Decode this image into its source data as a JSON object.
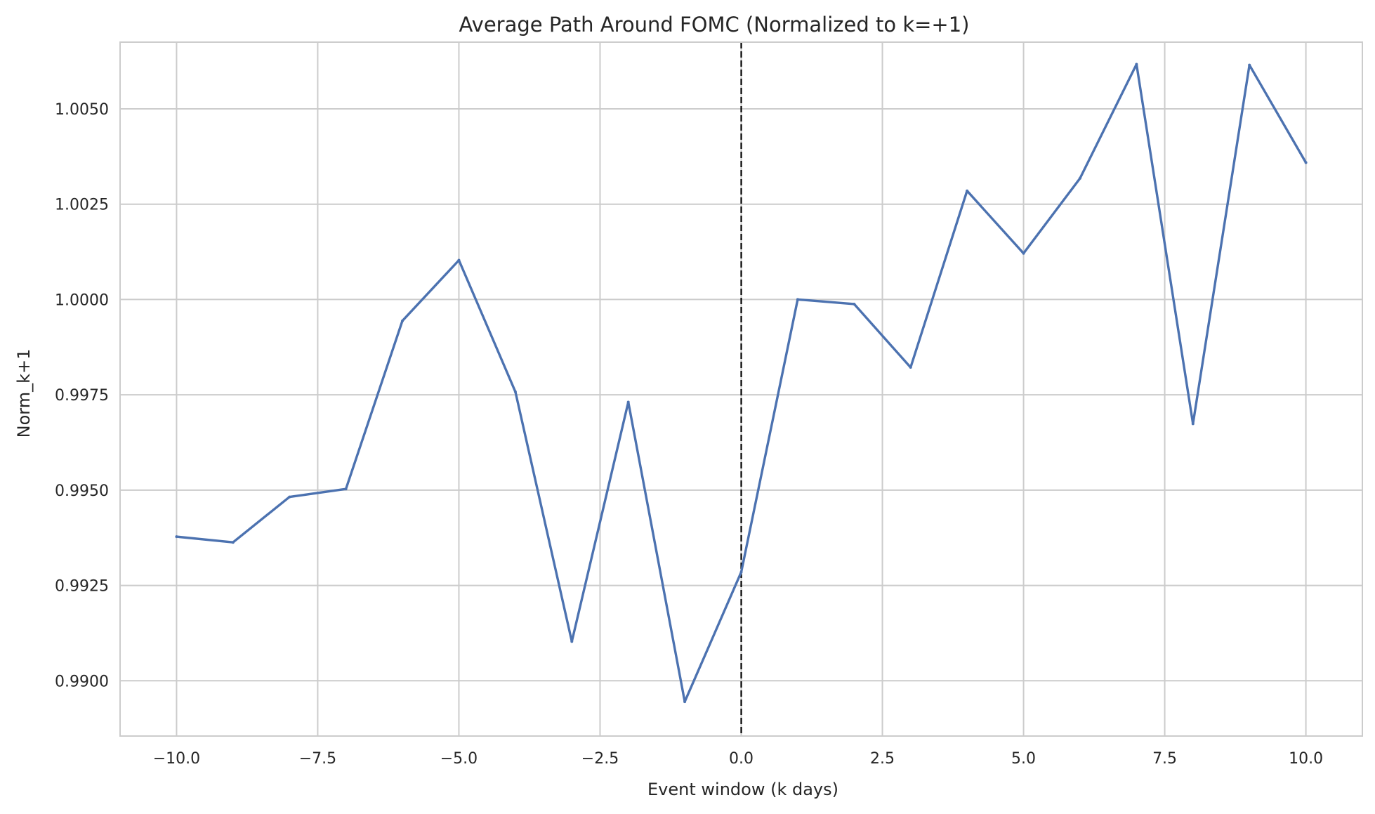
{
  "chart_data": {
    "type": "line",
    "title": "Average Path Around FOMC (Normalized to k=+1)",
    "xlabel": "Event window (k days)",
    "ylabel": "Norm_k+1",
    "xlim": [
      -11.0,
      11.0
    ],
    "ylim": [
      0.98855,
      1.00675
    ],
    "x_ticks": [
      -10.0,
      -7.5,
      -5.0,
      -2.5,
      0.0,
      2.5,
      5.0,
      7.5,
      10.0
    ],
    "x_tick_labels": [
      "−10.0",
      "−7.5",
      "−5.0",
      "−2.5",
      "0.0",
      "2.5",
      "5.0",
      "7.5",
      "10.0"
    ],
    "y_ticks": [
      0.99,
      0.9925,
      0.995,
      0.9975,
      1.0,
      1.0025,
      1.005
    ],
    "y_tick_labels": [
      "0.9900",
      "0.9925",
      "0.9950",
      "0.9975",
      "1.0000",
      "1.0025",
      "1.0050"
    ],
    "grid": true,
    "vline": {
      "x": 0,
      "style": "dashed",
      "color": "#000000"
    },
    "series": [
      {
        "color": "#4c72b0",
        "x": [
          -10,
          -9,
          -8,
          -7,
          -6,
          -5,
          -4,
          -3,
          -2,
          -1,
          0,
          1,
          2,
          3,
          4,
          5,
          6,
          7,
          8,
          9,
          10
        ],
        "y": [
          0.99378,
          0.99363,
          0.99482,
          0.99503,
          0.99944,
          1.00103,
          0.99758,
          0.99103,
          0.99731,
          0.98945,
          0.99285,
          1.0,
          0.99988,
          0.99822,
          1.00285,
          1.00121,
          1.00318,
          1.00617,
          0.99674,
          1.00615,
          1.00359
        ]
      }
    ]
  }
}
